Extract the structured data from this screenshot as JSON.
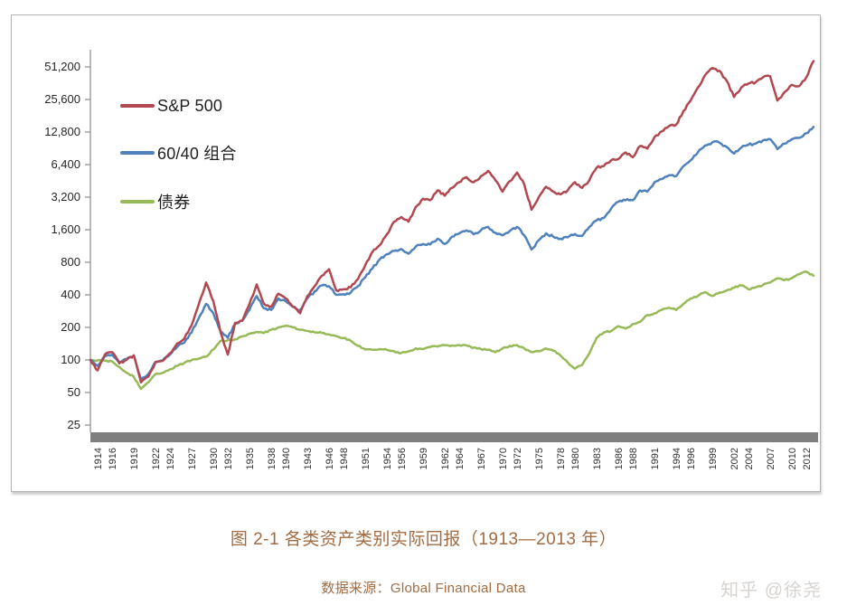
{
  "caption": {
    "title": "图 2-1 各类资产类别实际回报（1913—2013 年）",
    "source": "数据来源：Global Financial Data",
    "color": "#a26b41"
  },
  "watermark": {
    "text": "知乎 @徐尧",
    "color": "#d6d3d0"
  },
  "chart_data": {
    "type": "line",
    "title": "",
    "xlabel": "",
    "ylabel": "",
    "y_scale": "log2",
    "ylim": [
      25,
      51200
    ],
    "grid": false,
    "legend_position": "top-left-inside",
    "axis_color": "#9a9a9a",
    "axis_bar_color": "#7f7f7f",
    "tick_label_color": "#333333",
    "y_ticks": [
      25,
      50,
      100,
      200,
      400,
      800,
      1600,
      3200,
      6400,
      12800,
      25600,
      51200
    ],
    "y_tick_labels": [
      "25",
      "50",
      "100",
      "200",
      "400",
      "800",
      "1,600",
      "3,200",
      "6,400",
      "12,800",
      "25,600",
      "51,200"
    ],
    "x_tick_years": [
      1914,
      1916,
      1919,
      1922,
      1924,
      1927,
      1930,
      1932,
      1935,
      1938,
      1940,
      1943,
      1946,
      1948,
      1951,
      1954,
      1956,
      1959,
      1962,
      1964,
      1967,
      1970,
      1972,
      1975,
      1978,
      1980,
      1983,
      1986,
      1988,
      1991,
      1994,
      1996,
      1999,
      2002,
      2004,
      2007,
      2010,
      2012
    ],
    "x_start_year": 1913,
    "x_end_year": 2013,
    "series": [
      {
        "name": "S&P 500",
        "color": "#b2484f",
        "start_year": 1913,
        "values": [
          100,
          80,
          112,
          118,
          93,
          100,
          110,
          62,
          70,
          95,
          98,
          115,
          142,
          158,
          210,
          330,
          520,
          350,
          180,
          112,
          220,
          230,
          330,
          500,
          330,
          310,
          410,
          370,
          310,
          270,
          390,
          480,
          600,
          690,
          440,
          450,
          470,
          560,
          750,
          1000,
          1150,
          1450,
          1900,
          2100,
          1900,
          2600,
          3100,
          3000,
          3700,
          3300,
          3900,
          4400,
          4900,
          4400,
          5000,
          5600,
          4600,
          3600,
          4500,
          5400,
          4200,
          2450,
          3200,
          4000,
          3600,
          3400,
          3700,
          4400,
          3900,
          4600,
          6000,
          6200,
          7000,
          7200,
          8300,
          7500,
          9500,
          9000,
          11500,
          13000,
          14500,
          15000,
          20000,
          25000,
          33000,
          43000,
          50000,
          47000,
          38000,
          27000,
          33000,
          36000,
          37000,
          41000,
          42000,
          25000,
          30000,
          35000,
          34000,
          41000,
          58000
        ]
      },
      {
        "name": "60/40 组合",
        "color": "#4f81bd",
        "start_year": 1913,
        "values": [
          100,
          88,
          108,
          112,
          96,
          102,
          110,
          66,
          74,
          96,
          99,
          112,
          132,
          145,
          180,
          245,
          330,
          270,
          185,
          160,
          215,
          230,
          290,
          390,
          300,
          290,
          370,
          350,
          310,
          290,
          370,
          430,
          490,
          480,
          400,
          405,
          420,
          480,
          580,
          700,
          850,
          950,
          1020,
          1060,
          960,
          1120,
          1180,
          1170,
          1320,
          1180,
          1380,
          1480,
          1580,
          1450,
          1580,
          1700,
          1500,
          1420,
          1560,
          1700,
          1420,
          1050,
          1280,
          1480,
          1380,
          1320,
          1360,
          1460,
          1400,
          1700,
          1950,
          2050,
          2500,
          2900,
          3000,
          3000,
          3700,
          3600,
          4400,
          4700,
          5100,
          5000,
          6200,
          7000,
          8300,
          9600,
          10300,
          10200,
          9300,
          8100,
          9200,
          9800,
          10000,
          10700,
          11000,
          8900,
          10000,
          11000,
          11300,
          12500,
          14300
        ]
      },
      {
        "name": "债券",
        "color": "#96ba57",
        "start_year": 1913,
        "values": [
          100,
          99,
          98,
          97,
          86,
          76,
          70,
          54,
          62,
          74,
          76,
          82,
          88,
          94,
          100,
          103,
          107,
          125,
          150,
          152,
          155,
          165,
          175,
          182,
          178,
          190,
          200,
          207,
          200,
          190,
          185,
          180,
          178,
          172,
          166,
          160,
          150,
          135,
          125,
          124,
          126,
          124,
          120,
          116,
          120,
          128,
          126,
          132,
          133,
          137,
          136,
          137,
          136,
          130,
          126,
          124,
          118,
          128,
          135,
          137,
          128,
          118,
          120,
          128,
          122,
          110,
          95,
          83,
          90,
          115,
          160,
          180,
          185,
          205,
          195,
          215,
          225,
          260,
          270,
          290,
          305,
          290,
          330,
          370,
          390,
          424,
          390,
          420,
          440,
          466,
          490,
          450,
          470,
          492,
          520,
          570,
          545,
          570,
          620,
          655,
          600
        ]
      }
    ]
  }
}
